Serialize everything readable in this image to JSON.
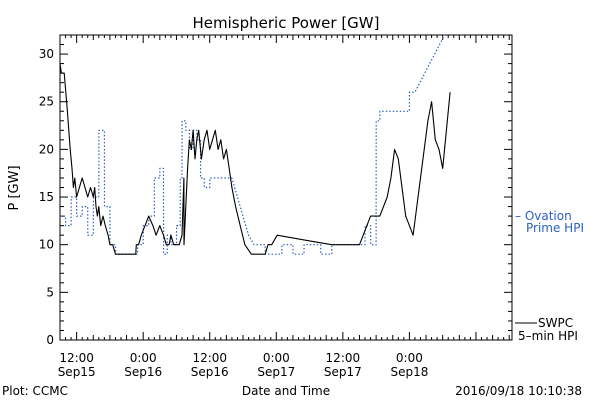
{
  "chart_data": {
    "type": "line",
    "title": "Hemispheric Power [GW]",
    "xlabel": "Date and Time",
    "ylabel": "P [GW]",
    "ylim": [
      0,
      32
    ],
    "xlim": [
      "2016-09-15 09:00",
      "2016-09-18 18:30"
    ],
    "x_ticks": [
      {
        "time": "2016-09-15 12:00",
        "label_time": "12:00",
        "label_date": "Sep15"
      },
      {
        "time": "2016-09-16 00:00",
        "label_time": "0:00",
        "label_date": "Sep16"
      },
      {
        "time": "2016-09-16 12:00",
        "label_time": "12:00",
        "label_date": "Sep16"
      },
      {
        "time": "2016-09-17 00:00",
        "label_time": "0:00",
        "label_date": "Sep17"
      },
      {
        "time": "2016-09-17 12:00",
        "label_time": "12:00",
        "label_date": "Sep17"
      },
      {
        "time": "2016-09-18 00:00",
        "label_time": "0:00",
        "label_date": "Sep18"
      }
    ],
    "y_ticks": [
      0,
      5,
      10,
      15,
      20,
      25,
      30
    ],
    "grid": false,
    "series": [
      {
        "name": "SWPC 5-min HPI",
        "color": "#000000",
        "style": "solid",
        "points": [
          [
            "2016-09-15 09:00",
            29
          ],
          [
            "2016-09-15 09:15",
            28
          ],
          [
            "2016-09-15 09:45",
            28
          ],
          [
            "2016-09-15 10:20",
            24
          ],
          [
            "2016-09-15 10:50",
            20
          ],
          [
            "2016-09-15 11:10",
            18
          ],
          [
            "2016-09-15 11:25",
            16
          ],
          [
            "2016-09-15 11:40",
            17
          ],
          [
            "2016-09-15 12:00",
            15
          ],
          [
            "2016-09-15 12:30",
            16
          ],
          [
            "2016-09-15 13:00",
            17
          ],
          [
            "2016-09-15 13:30",
            16
          ],
          [
            "2016-09-15 14:00",
            15
          ],
          [
            "2016-09-15 14:30",
            16
          ],
          [
            "2016-09-15 15:00",
            15
          ],
          [
            "2016-09-15 15:15",
            16
          ],
          [
            "2016-09-15 15:30",
            14
          ],
          [
            "2016-09-15 15:45",
            13
          ],
          [
            "2016-09-15 16:00",
            14
          ],
          [
            "2016-09-15 16:20",
            12
          ],
          [
            "2016-09-15 16:45",
            13
          ],
          [
            "2016-09-15 17:10",
            12
          ],
          [
            "2016-09-15 17:40",
            11
          ],
          [
            "2016-09-15 18:00",
            10
          ],
          [
            "2016-09-15 18:30",
            10
          ],
          [
            "2016-09-15 19:00",
            9
          ],
          [
            "2016-09-15 20:00",
            9
          ],
          [
            "2016-09-15 21:00",
            9
          ],
          [
            "2016-09-15 22:00",
            9
          ],
          [
            "2016-09-15 22:40",
            9
          ],
          [
            "2016-09-15 22:45",
            10
          ],
          [
            "2016-09-15 23:10",
            10
          ],
          [
            "2016-09-15 23:40",
            11
          ],
          [
            "2016-09-16 00:20",
            12
          ],
          [
            "2016-09-16 01:00",
            13
          ],
          [
            "2016-09-16 01:45",
            12
          ],
          [
            "2016-09-16 02:20",
            11
          ],
          [
            "2016-09-16 03:00",
            12
          ],
          [
            "2016-09-16 03:40",
            11
          ],
          [
            "2016-09-16 04:10",
            10
          ],
          [
            "2016-09-16 04:40",
            10
          ],
          [
            "2016-09-16 05:00",
            11
          ],
          [
            "2016-09-16 05:30",
            10
          ],
          [
            "2016-09-16 06:30",
            10
          ],
          [
            "2016-09-16 07:00",
            11
          ],
          [
            "2016-09-16 07:20",
            17
          ],
          [
            "2016-09-16 07:22",
            10
          ],
          [
            "2016-09-16 08:00",
            18
          ],
          [
            "2016-09-16 08:20",
            21
          ],
          [
            "2016-09-16 08:40",
            20
          ],
          [
            "2016-09-16 09:00",
            22
          ],
          [
            "2016-09-16 09:20",
            19
          ],
          [
            "2016-09-16 09:40",
            21
          ],
          [
            "2016-09-16 10:00",
            22
          ],
          [
            "2016-09-16 10:30",
            19
          ],
          [
            "2016-09-16 11:00",
            21
          ],
          [
            "2016-09-16 11:30",
            22
          ],
          [
            "2016-09-16 12:00",
            20
          ],
          [
            "2016-09-16 12:30",
            21
          ],
          [
            "2016-09-16 13:00",
            22
          ],
          [
            "2016-09-16 13:30",
            20
          ],
          [
            "2016-09-16 14:00",
            21
          ],
          [
            "2016-09-16 14:30",
            19
          ],
          [
            "2016-09-16 15:00",
            20
          ],
          [
            "2016-09-16 15:30",
            18
          ],
          [
            "2016-09-16 16:00",
            16
          ],
          [
            "2016-09-16 16:40",
            14
          ],
          [
            "2016-09-16 17:30",
            12
          ],
          [
            "2016-09-16 18:20",
            10
          ],
          [
            "2016-09-16 19:30",
            9
          ],
          [
            "2016-09-16 21:00",
            9
          ],
          [
            "2016-09-16 22:00",
            9
          ],
          [
            "2016-09-16 22:30",
            10
          ],
          [
            "2016-09-16 23:10",
            10
          ],
          [
            "2016-09-17 00:10",
            11
          ],
          [
            "2016-09-17 05:00",
            10.5
          ],
          [
            "2016-09-17 10:00",
            10
          ],
          [
            "2016-09-17 15:00",
            10
          ],
          [
            "2016-09-17 15:40",
            11
          ],
          [
            "2016-09-17 16:20",
            12
          ],
          [
            "2016-09-17 17:00",
            13
          ],
          [
            "2016-09-17 18:40",
            13
          ],
          [
            "2016-09-17 19:20",
            14
          ],
          [
            "2016-09-17 20:00",
            15
          ],
          [
            "2016-09-17 20:40",
            17
          ],
          [
            "2016-09-17 21:20",
            20
          ],
          [
            "2016-09-17 22:00",
            19
          ],
          [
            "2016-09-17 22:40",
            16
          ],
          [
            "2016-09-17 23:20",
            13
          ],
          [
            "2016-09-18 00:00",
            12
          ],
          [
            "2016-09-18 00:40",
            11
          ],
          [
            "2016-09-18 01:20",
            14
          ],
          [
            "2016-09-18 02:00",
            17
          ],
          [
            "2016-09-18 02:40",
            20
          ],
          [
            "2016-09-18 03:20",
            23
          ],
          [
            "2016-09-18 04:00",
            25
          ],
          [
            "2016-09-18 04:40",
            21
          ],
          [
            "2016-09-18 05:20",
            20
          ],
          [
            "2016-09-18 06:00",
            18
          ],
          [
            "2016-09-18 06:40",
            22
          ],
          [
            "2016-09-18 07:20",
            26
          ]
        ]
      },
      {
        "name": "Ovation Prime HPI",
        "color": "#2c5fbf",
        "style": "dotted",
        "points": [
          [
            "2016-09-15 09:00",
            13
          ],
          [
            "2016-09-15 10:00",
            13
          ],
          [
            "2016-09-15 10:01",
            12
          ],
          [
            "2016-09-15 11:00",
            12
          ],
          [
            "2016-09-15 11:01",
            15
          ],
          [
            "2016-09-15 12:00",
            15
          ],
          [
            "2016-09-15 12:01",
            13
          ],
          [
            "2016-09-15 13:00",
            13
          ],
          [
            "2016-09-15 13:01",
            14
          ],
          [
            "2016-09-15 14:00",
            14
          ],
          [
            "2016-09-15 14:01",
            11
          ],
          [
            "2016-09-15 15:00",
            11
          ],
          [
            "2016-09-15 15:01",
            15
          ],
          [
            "2016-09-15 16:00",
            15
          ],
          [
            "2016-09-15 16:01",
            22
          ],
          [
            "2016-09-15 17:00",
            22
          ],
          [
            "2016-09-15 17:01",
            14
          ],
          [
            "2016-09-15 18:00",
            14
          ],
          [
            "2016-09-15 18:01",
            10
          ],
          [
            "2016-09-15 19:00",
            10
          ],
          [
            "2016-09-15 19:01",
            9
          ],
          [
            "2016-09-15 23:00",
            9
          ],
          [
            "2016-09-15 23:01",
            10
          ],
          [
            "2016-09-16 00:00",
            10
          ],
          [
            "2016-09-16 00:01",
            12
          ],
          [
            "2016-09-16 01:00",
            12
          ],
          [
            "2016-09-16 01:01",
            13
          ],
          [
            "2016-09-16 02:00",
            13
          ],
          [
            "2016-09-16 02:01",
            17
          ],
          [
            "2016-09-16 03:00",
            17
          ],
          [
            "2016-09-16 03:01",
            18
          ],
          [
            "2016-09-16 03:40",
            18
          ],
          [
            "2016-09-16 03:41",
            9
          ],
          [
            "2016-09-16 04:20",
            9
          ],
          [
            "2016-09-16 04:21",
            11
          ],
          [
            "2016-09-16 05:00",
            11
          ],
          [
            "2016-09-16 05:01",
            10
          ],
          [
            "2016-09-16 06:00",
            10
          ],
          [
            "2016-09-16 06:01",
            12
          ],
          [
            "2016-09-16 06:40",
            12
          ],
          [
            "2016-09-16 06:41",
            17
          ],
          [
            "2016-09-16 07:00",
            17
          ],
          [
            "2016-09-16 07:01",
            23
          ],
          [
            "2016-09-16 07:40",
            23
          ],
          [
            "2016-09-16 07:41",
            22
          ],
          [
            "2016-09-16 08:20",
            22
          ],
          [
            "2016-09-16 08:21",
            20
          ],
          [
            "2016-09-16 09:00",
            20
          ],
          [
            "2016-09-16 09:01",
            22
          ],
          [
            "2016-09-16 09:40",
            22
          ],
          [
            "2016-09-16 09:41",
            21
          ],
          [
            "2016-09-16 10:20",
            21
          ],
          [
            "2016-09-16 10:21",
            17
          ],
          [
            "2016-09-16 11:00",
            17
          ],
          [
            "2016-09-16 11:01",
            16
          ],
          [
            "2016-09-16 12:00",
            16
          ],
          [
            "2016-09-16 12:01",
            17
          ],
          [
            "2016-09-16 16:00",
            17
          ],
          [
            "2016-09-16 18:00",
            13
          ],
          [
            "2016-09-16 19:00",
            11
          ],
          [
            "2016-09-16 20:00",
            10
          ],
          [
            "2016-09-16 22:00",
            10
          ],
          [
            "2016-09-16 22:01",
            9
          ],
          [
            "2016-09-17 01:00",
            9
          ],
          [
            "2016-09-17 01:01",
            10
          ],
          [
            "2016-09-17 03:00",
            10
          ],
          [
            "2016-09-17 03:01",
            9
          ],
          [
            "2016-09-17 05:00",
            9
          ],
          [
            "2016-09-17 05:01",
            10
          ],
          [
            "2016-09-17 08:00",
            10
          ],
          [
            "2016-09-17 08:01",
            9
          ],
          [
            "2016-09-17 10:00",
            9
          ],
          [
            "2016-09-17 10:01",
            10
          ],
          [
            "2016-09-17 16:00",
            10
          ],
          [
            "2016-09-17 16:01",
            12
          ],
          [
            "2016-09-17 17:00",
            12
          ],
          [
            "2016-09-17 17:01",
            10
          ],
          [
            "2016-09-17 18:00",
            10
          ],
          [
            "2016-09-17 18:01",
            23
          ],
          [
            "2016-09-17 18:40",
            23
          ],
          [
            "2016-09-17 18:41",
            24
          ],
          [
            "2016-09-18 00:00",
            24
          ],
          [
            "2016-09-18 00:01",
            26
          ],
          [
            "2016-09-18 01:00",
            26
          ],
          [
            "2016-09-18 06:20",
            32
          ]
        ]
      }
    ],
    "legend": {
      "placement": "right",
      "entries": [
        {
          "series": "Ovation Prime HPI",
          "line1": "– Ovation",
          "line2": "Prime HPI",
          "color": "#2c5fbf"
        },
        {
          "series": "SWPC 5-min HPI",
          "line1": "SWPC",
          "line2": "5–min HPI",
          "color": "#000000"
        }
      ]
    }
  },
  "footer": {
    "left": "Plot: CCMC",
    "center": "Date and Time",
    "right": "2016/09/18 10:10:38"
  }
}
